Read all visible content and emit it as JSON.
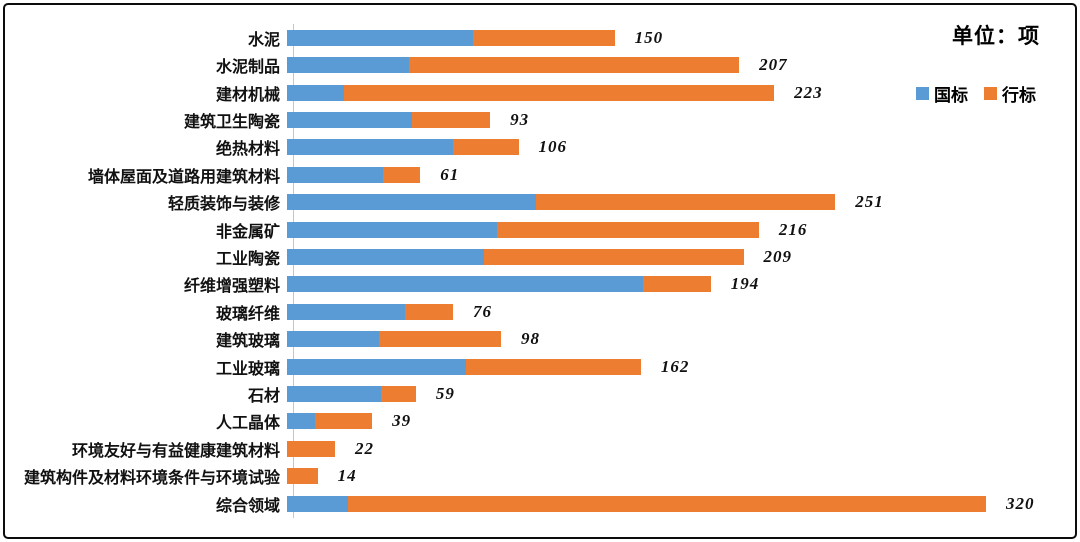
{
  "frame": {
    "background": "#ffffff",
    "border_color": "#0c0c0c"
  },
  "header": {
    "unit_label": "单位：项"
  },
  "legend": [
    {
      "label": "国标",
      "color": "#5B9BD5"
    },
    {
      "label": "行标",
      "color": "#ED7D31"
    }
  ],
  "chart_data": {
    "type": "bar",
    "orientation": "horizontal",
    "stacked": true,
    "title": "单位：项",
    "grid": false,
    "legend_position": "top-right",
    "xlim": [
      0,
      320
    ],
    "categories": [
      "水泥",
      "水泥制品",
      "建材机械",
      "建筑卫生陶瓷",
      "绝热材料",
      "墙体屋面及道路用建筑材料",
      "轻质装饰与装修",
      "非金属矿",
      "工业陶瓷",
      "纤维增强塑料",
      "玻璃纤维",
      "建筑玻璃",
      "工业玻璃",
      "石材",
      "人工晶体",
      "环境友好与有益健康建筑材料",
      "建筑构件及材料环境条件与环境试验",
      "综合领域"
    ],
    "series": [
      {
        "name": "国标",
        "color": "#5B9BD5",
        "values": [
          85,
          56,
          26,
          57,
          76,
          44,
          114,
          96,
          90,
          163,
          54,
          42,
          82,
          43,
          13,
          0,
          0,
          28
        ]
      },
      {
        "name": "行标",
        "color": "#ED7D31",
        "values": [
          65,
          151,
          197,
          36,
          30,
          17,
          137,
          120,
          119,
          31,
          22,
          56,
          80,
          16,
          26,
          22,
          14,
          292
        ]
      }
    ],
    "totals": [
      150,
      207,
      223,
      93,
      106,
      61,
      251,
      216,
      209,
      194,
      76,
      98,
      162,
      59,
      39,
      22,
      14,
      320
    ]
  }
}
